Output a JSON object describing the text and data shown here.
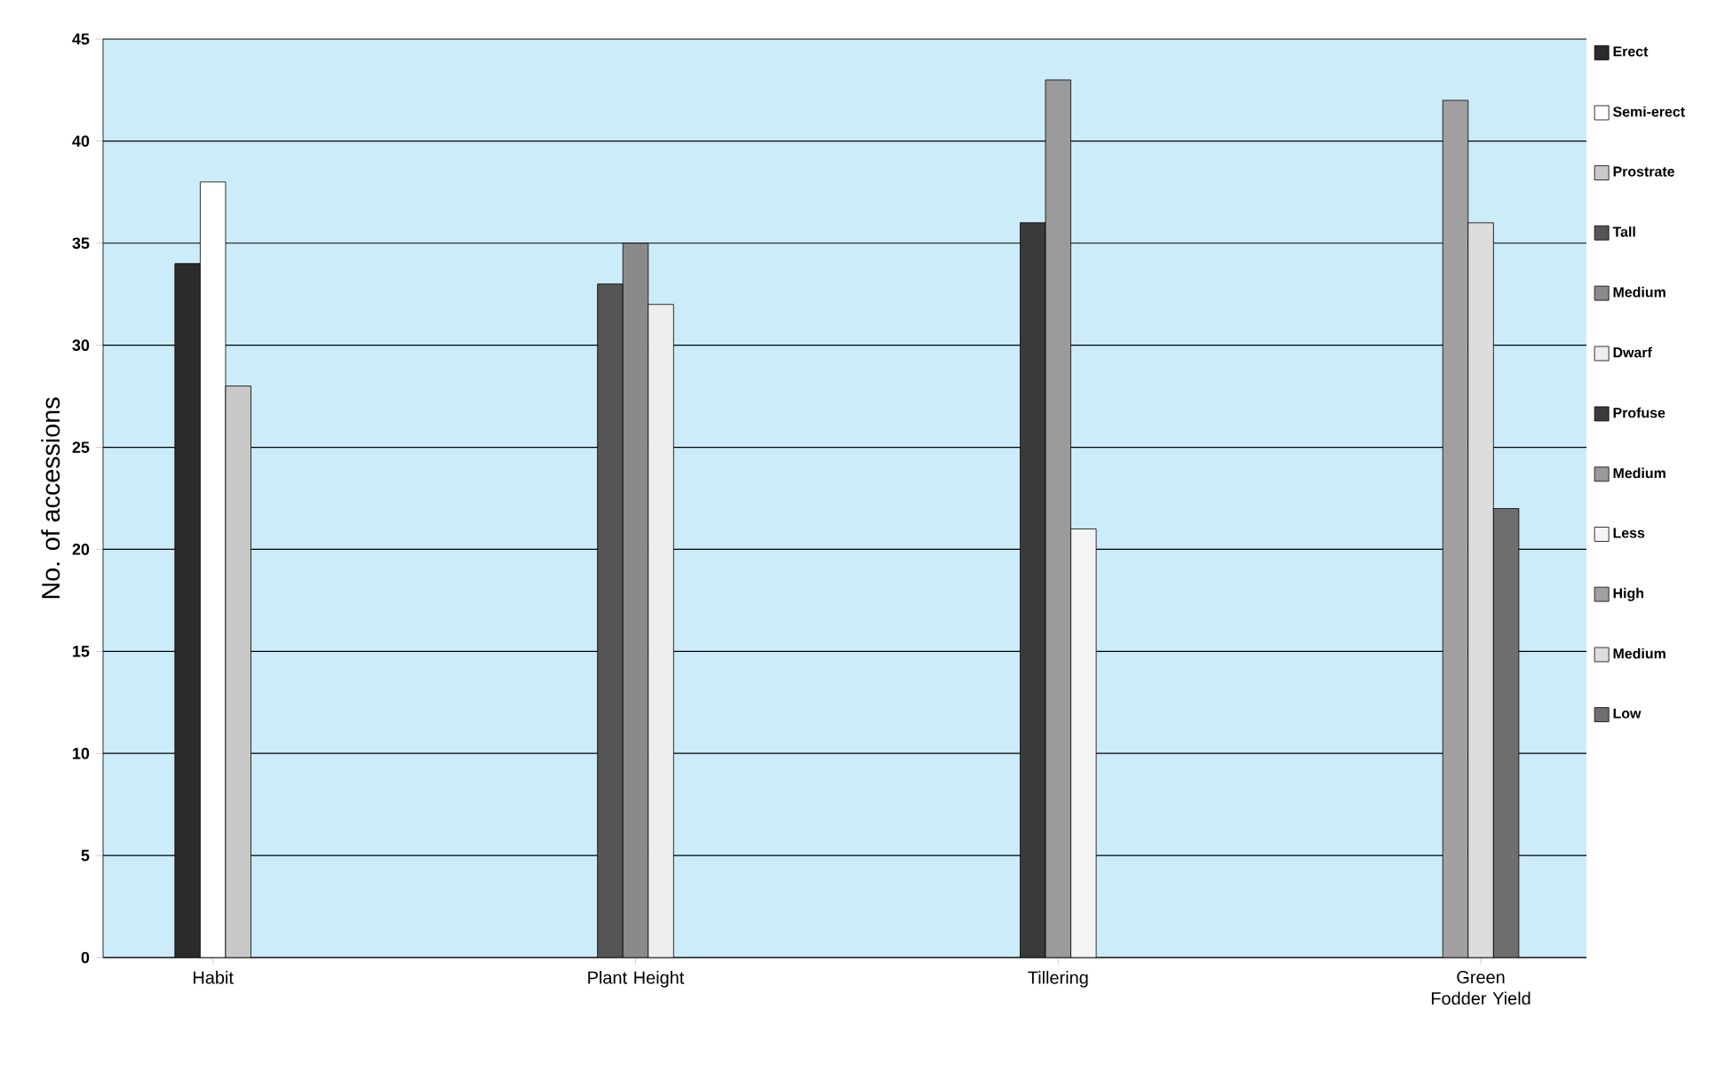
{
  "chart_data": {
    "type": "bar",
    "ylabel": "No. of accessions",
    "categories": [
      "Habit",
      "Plant Height",
      "Tillering",
      "Green Fodder Yield"
    ],
    "series": [
      {
        "name": "Erect",
        "color": "#2b2b2b",
        "values": [
          34,
          null,
          null,
          null
        ]
      },
      {
        "name": "Semi-erect",
        "color": "#ffffff",
        "values": [
          38,
          null,
          null,
          null
        ]
      },
      {
        "name": "Prostrate",
        "color": "#c8c8c8",
        "values": [
          28,
          null,
          null,
          null
        ]
      },
      {
        "name": "Tall",
        "color": "#555555",
        "values": [
          null,
          33,
          null,
          null
        ]
      },
      {
        "name": "Medium",
        "color": "#8a8a8a",
        "values": [
          null,
          35,
          null,
          null
        ]
      },
      {
        "name": "Dwarf",
        "color": "#eeeeee",
        "values": [
          null,
          32,
          null,
          null
        ]
      },
      {
        "name": "Profuse",
        "color": "#3a3a3a",
        "values": [
          null,
          null,
          36,
          null
        ]
      },
      {
        "name": "Medium",
        "color": "#9a9a9a",
        "values": [
          null,
          null,
          43,
          null
        ]
      },
      {
        "name": "Less",
        "color": "#f4f4f4",
        "values": [
          null,
          null,
          21,
          null
        ]
      },
      {
        "name": "High",
        "color": "#a0a0a0",
        "values": [
          null,
          null,
          null,
          42
        ]
      },
      {
        "name": "Medium",
        "color": "#dddddd",
        "values": [
          null,
          null,
          null,
          36
        ]
      },
      {
        "name": "Low",
        "color": "#6e6e6e",
        "values": [
          null,
          null,
          null,
          22
        ]
      }
    ],
    "ylim": [
      0,
      45
    ],
    "yticks": [
      0,
      5,
      10,
      15,
      20,
      25,
      30,
      35,
      40,
      45
    ],
    "grid": "y",
    "legend": "right"
  }
}
